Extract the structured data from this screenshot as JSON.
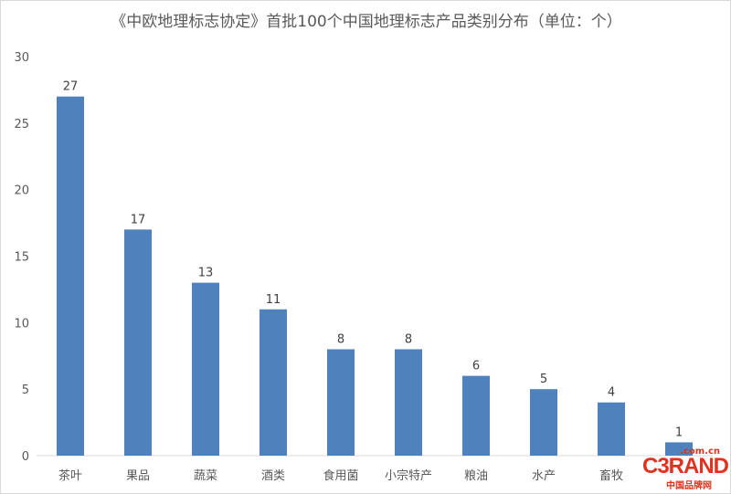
{
  "chart_data": {
    "type": "bar",
    "title": "《中欧地理标志协定》首批100个中国地理标志产品类别分布（单位：个）",
    "categories": [
      "茶叶",
      "果品",
      "蔬菜",
      "酒类",
      "食用菌",
      "小宗特产",
      "粮油",
      "水产",
      "畜牧",
      ""
    ],
    "values": [
      27,
      17,
      13,
      11,
      8,
      8,
      6,
      5,
      4,
      1
    ],
    "ylim": [
      0,
      30
    ],
    "yticks": [
      0,
      5,
      10,
      15,
      20,
      25,
      30
    ],
    "grid": false,
    "bar_color": "#4f81bd",
    "xlabel": "",
    "ylabel": ""
  },
  "watermark": {
    "brand": "C3RAND",
    "domain": ".com.cn",
    "cn": "中国品牌网"
  }
}
